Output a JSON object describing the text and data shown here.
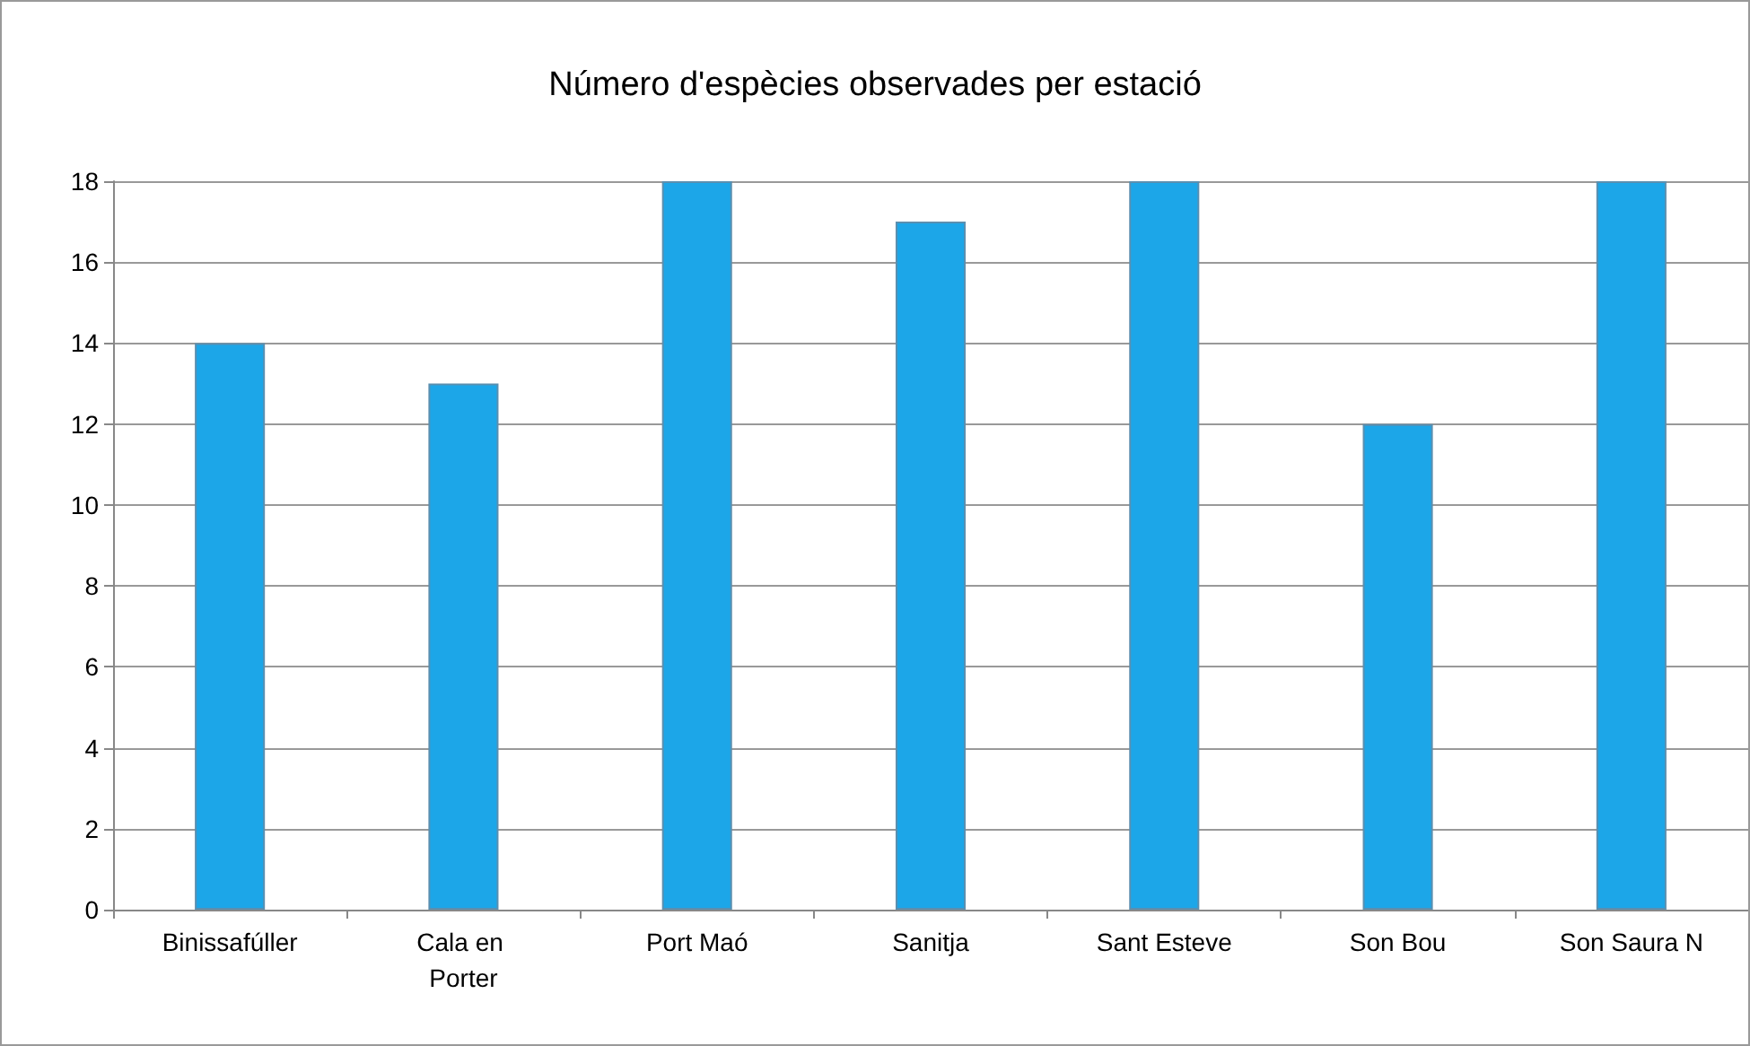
{
  "chart_data": {
    "type": "bar",
    "title": "Número d'espècies observades per estació",
    "categories": [
      "Binissafúller",
      "Cala en Porter",
      "Port Maó",
      "Sanitja",
      "Sant Esteve",
      "Son Bou",
      "Son Saura N"
    ],
    "values": [
      14,
      13,
      18,
      17,
      18,
      12,
      18
    ],
    "color": "#1ca6e8",
    "ylim": [
      0,
      18
    ],
    "yticks": [
      0,
      2,
      4,
      6,
      8,
      10,
      12,
      14,
      16,
      18
    ],
    "grid": "y"
  }
}
